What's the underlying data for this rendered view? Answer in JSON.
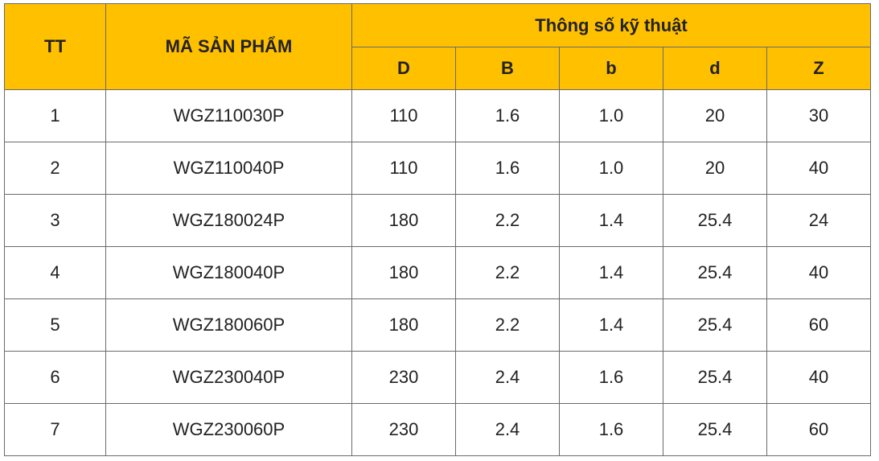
{
  "table": {
    "header": {
      "tt": "TT",
      "product_code": "MÃ SẢN PHẨM",
      "spec_group": "Thông số kỹ thuật",
      "spec_columns": [
        "D",
        "B",
        "b",
        "d",
        "Z"
      ]
    },
    "rows": [
      {
        "tt": "1",
        "code": "WGZ110030P",
        "D": "110",
        "B": "1.6",
        "b": "1.0",
        "d": "20",
        "Z": "30"
      },
      {
        "tt": "2",
        "code": "WGZ110040P",
        "D": "110",
        "B": "1.6",
        "b": "1.0",
        "d": "20",
        "Z": "40"
      },
      {
        "tt": "3",
        "code": "WGZ180024P",
        "D": "180",
        "B": "2.2",
        "b": "1.4",
        "d": "25.4",
        "Z": "24"
      },
      {
        "tt": "4",
        "code": "WGZ180040P",
        "D": "180",
        "B": "2.2",
        "b": "1.4",
        "d": "25.4",
        "Z": "40"
      },
      {
        "tt": "5",
        "code": "WGZ180060P",
        "D": "180",
        "B": "2.2",
        "b": "1.4",
        "d": "25.4",
        "Z": "60"
      },
      {
        "tt": "6",
        "code": "WGZ230040P",
        "D": "230",
        "B": "2.4",
        "b": "1.6",
        "d": "25.4",
        "Z": "40"
      },
      {
        "tt": "7",
        "code": "WGZ230060P",
        "D": "230",
        "B": "2.4",
        "b": "1.6",
        "d": "25.4",
        "Z": "60"
      }
    ]
  },
  "colors": {
    "header_background": "#ffc000",
    "border": "#6a6a6a",
    "text": "#222222"
  }
}
